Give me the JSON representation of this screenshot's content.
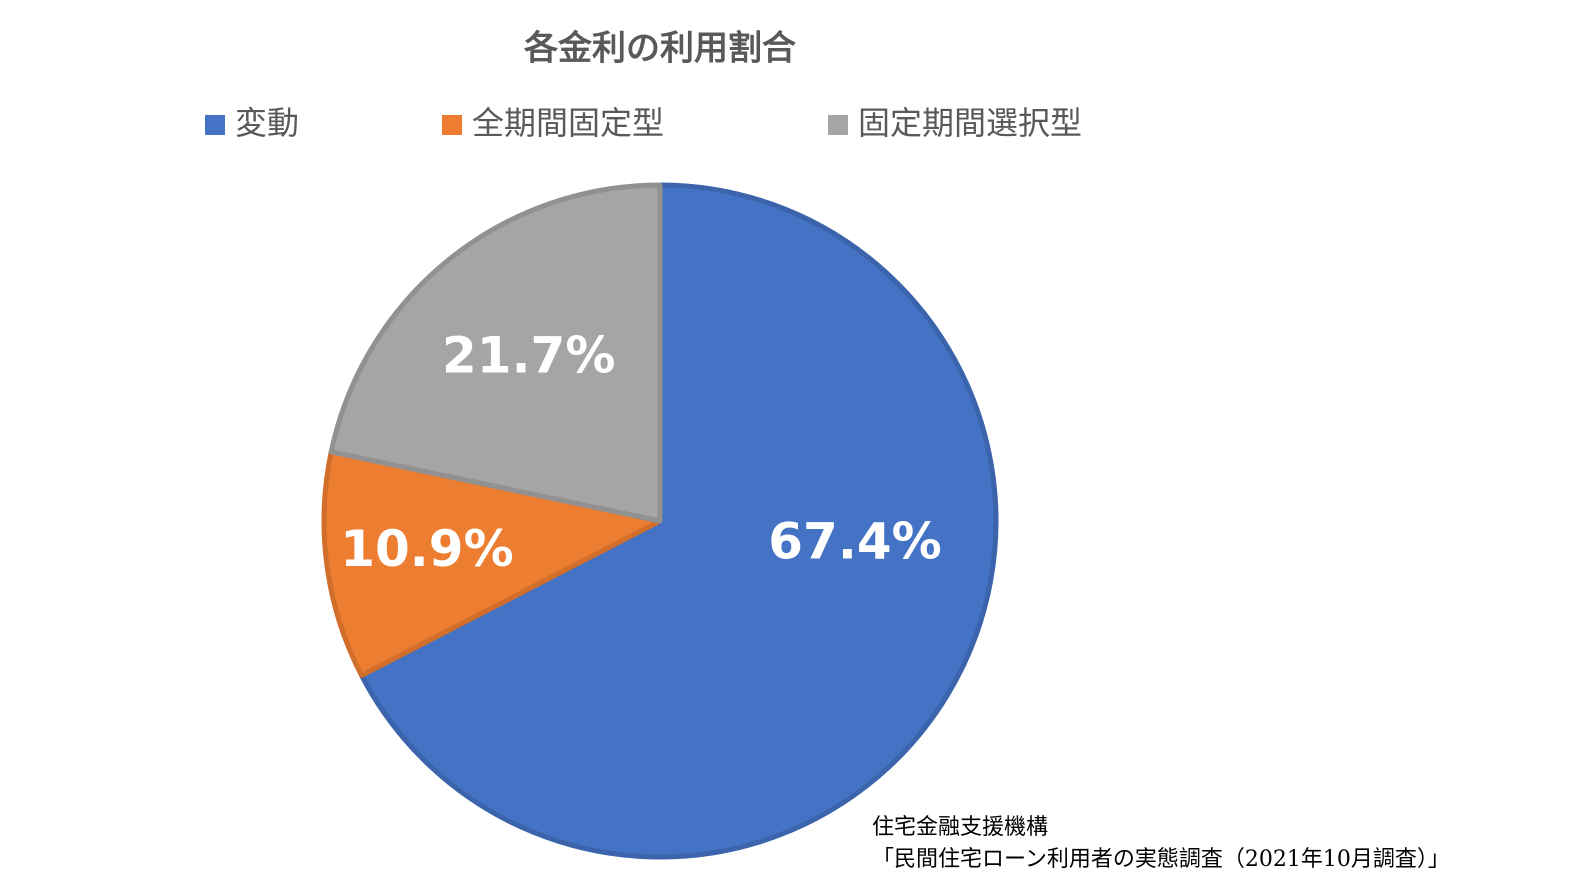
{
  "chart_data": {
    "type": "pie",
    "title": "各金利の利用割合",
    "categories": [
      "変動",
      "全期間固定型",
      "固定期間選択型"
    ],
    "values": [
      67.4,
      10.9,
      21.7
    ],
    "value_labels": [
      "67.4%",
      "10.9%",
      "21.7%"
    ],
    "colors": [
      "#4472c4",
      "#ed7d31",
      "#a5a5a5"
    ],
    "legend": "top",
    "annotations": [
      "住宅金融支援機構",
      "「民間住宅ローン利用者の実態調査（2021年10月調査）」"
    ]
  }
}
